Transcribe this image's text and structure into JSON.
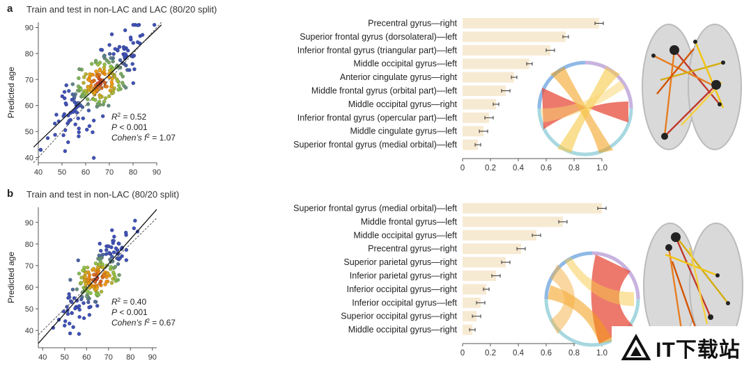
{
  "colors": {
    "bar_fill": "#f7ead2",
    "error_bar": "#333333",
    "axis": "#555555",
    "scatter_high": "#c0392b",
    "scatter_mid": "#8bc34a",
    "scatter_low": "#3f51b5"
  },
  "panels": [
    {
      "label": "a",
      "title": "Train and test in non-LAC and LAC (80/20 split)",
      "stats": {
        "r2_label": "R",
        "r2_sup": "2",
        "r2_value": " = 0.52",
        "p_label": "P",
        "p_value": " < 0.001",
        "f2_label": "Cohen’s f",
        "f2_sup": "2",
        "f2_value": " = 1.07"
      },
      "icons": [
        "chord-diagram-icon",
        "brain-connectivity-icon"
      ],
      "chart_data": [
        {
          "type": "scatter",
          "title": "",
          "xlabel": "",
          "ylabel": "Predicted age",
          "xlim": [
            40,
            90
          ],
          "ylim": [
            38,
            92
          ],
          "xticks": [
            40,
            50,
            60,
            70,
            80,
            90
          ],
          "yticks": [
            40,
            50,
            60,
            70,
            80,
            90
          ],
          "fit_line": [
            [
              38,
              44
            ],
            [
              92,
              91
            ]
          ],
          "identity_line": [
            [
              38,
              38
            ],
            [
              92,
              92
            ]
          ],
          "x_center": 66,
          "y_center": 69,
          "x_sd": 9,
          "n_points": 240,
          "seed": 7
        },
        {
          "type": "bar",
          "orientation": "horizontal",
          "categories": [
            "Precentral gyrus—right",
            "Superior frontal gyrus (dorsolateral)—left",
            "Inferior frontal gyrus (triangular part)—left",
            "Middle occipital gyrus—left",
            "Anterior cingulate gyrus—right",
            "Middle frontal gyrus (orbital part)—left",
            "Middle occipital gyrus—right",
            "Inferior frontal gyrus (opercular part)—left",
            "Middle cingulate gyrus—left",
            "Superior frontal gyrus (medial orbital)—left"
          ],
          "values": [
            0.98,
            0.74,
            0.63,
            0.48,
            0.37,
            0.31,
            0.24,
            0.19,
            0.15,
            0.11
          ],
          "errors": [
            0.03,
            0.02,
            0.03,
            0.02,
            0.02,
            0.03,
            0.02,
            0.03,
            0.03,
            0.02
          ],
          "xlim": [
            0,
            1.0
          ],
          "xticks": [
            "0",
            "0.2",
            "0.4",
            "0.6",
            "0.8",
            "1.0"
          ]
        }
      ]
    },
    {
      "label": "b",
      "title": "Train and test in non-LAC (80/20 split)",
      "stats": {
        "r2_label": "R",
        "r2_sup": "2",
        "r2_value": " = 0.40",
        "p_label": "P",
        "p_value": " < 0.001",
        "f2_label": "Cohen’s f",
        "f2_sup": "2",
        "f2_value": " = 0.67"
      },
      "icons": [
        "chord-diagram-icon",
        "brain-connectivity-icon"
      ],
      "chart_data": [
        {
          "type": "scatter",
          "title": "",
          "xlabel": "",
          "ylabel": "Predicted age",
          "xlim": [
            38,
            92
          ],
          "ylim": [
            32,
            97
          ],
          "xticks": [
            40,
            50,
            60,
            70,
            80,
            90
          ],
          "yticks": [
            40,
            50,
            60,
            70,
            80,
            90
          ],
          "fit_line": [
            [
              38,
              34
            ],
            [
              92,
              96
            ]
          ],
          "identity_line": [
            [
              38,
              38
            ],
            [
              92,
              92
            ]
          ],
          "x_center": 65,
          "y_center": 64,
          "x_sd": 7,
          "n_points": 200,
          "seed": 19
        },
        {
          "type": "bar",
          "orientation": "horizontal",
          "categories": [
            "Superior frontal gyrus (medial orbital)—left",
            "Middle frontal gyrus—left",
            "Middle occipital gyrus—left",
            "Precentral gyrus—right",
            "Superior parietal gyrus—right",
            "Inferior parietal gyrus—right",
            "Inferior occipital gyrus—right",
            "Inferior occipital gyrus—left",
            "Superior occipital gyrus—right",
            "Middle occipital gyrus—right"
          ],
          "values": [
            1.0,
            0.72,
            0.53,
            0.42,
            0.31,
            0.24,
            0.17,
            0.13,
            0.1,
            0.07
          ],
          "errors": [
            0.03,
            0.03,
            0.03,
            0.03,
            0.03,
            0.03,
            0.02,
            0.03,
            0.03,
            0.02
          ],
          "xlim": [
            0,
            1.0
          ],
          "xticks": [
            "0",
            "0.2",
            "0.4",
            "0.6",
            "0.8",
            "1.0"
          ]
        }
      ]
    }
  ],
  "watermark": {
    "icon": "triangle-logo-icon",
    "text": "IT下载站"
  }
}
